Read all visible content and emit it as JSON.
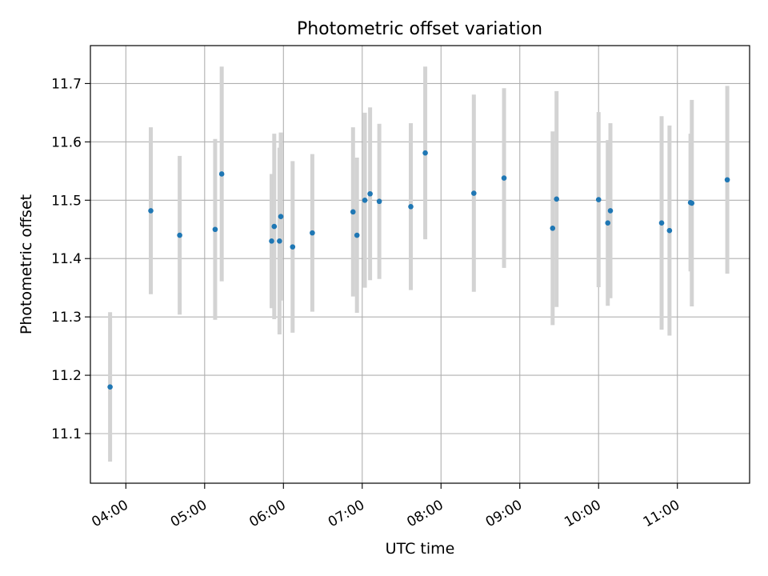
{
  "chart_data": {
    "type": "scatter",
    "title": "Photometric offset variation",
    "xlabel": "UTC time",
    "ylabel": "Photometric offset",
    "x_axis_kind": "time",
    "xlim": [
      "03:33",
      "11:55"
    ],
    "ylim": [
      11.015,
      11.765
    ],
    "x_ticks": [
      "04:00",
      "05:00",
      "06:00",
      "07:00",
      "08:00",
      "09:00",
      "10:00",
      "11:00"
    ],
    "y_ticks": [
      "11.1",
      "11.2",
      "11.3",
      "11.4",
      "11.5",
      "11.6",
      "11.7"
    ],
    "grid": true,
    "series": [
      {
        "marker_color": "#1f77b4",
        "errorbar_color": "#d3d3d3",
        "points": [
          {
            "x": "03:48",
            "y": 11.18,
            "yerr": 0.128
          },
          {
            "x": "04:19",
            "y": 11.482,
            "yerr": 0.143
          },
          {
            "x": "04:41",
            "y": 11.44,
            "yerr": 0.136
          },
          {
            "x": "05:08",
            "y": 11.45,
            "yerr": 0.155
          },
          {
            "x": "05:13",
            "y": 11.545,
            "yerr": 0.184
          },
          {
            "x": "05:51",
            "y": 11.43,
            "yerr": 0.115
          },
          {
            "x": "05:53",
            "y": 11.455,
            "yerr": 0.159
          },
          {
            "x": "05:57",
            "y": 11.43,
            "yerr": 0.16
          },
          {
            "x": "05:58",
            "y": 11.472,
            "yerr": 0.144
          },
          {
            "x": "06:07",
            "y": 11.42,
            "yerr": 0.147
          },
          {
            "x": "06:22",
            "y": 11.444,
            "yerr": 0.135
          },
          {
            "x": "06:53",
            "y": 11.48,
            "yerr": 0.145
          },
          {
            "x": "06:56",
            "y": 11.44,
            "yerr": 0.133
          },
          {
            "x": "07:02",
            "y": 11.5,
            "yerr": 0.15
          },
          {
            "x": "07:06",
            "y": 11.511,
            "yerr": 0.148
          },
          {
            "x": "07:13",
            "y": 11.498,
            "yerr": 0.133
          },
          {
            "x": "07:37",
            "y": 11.489,
            "yerr": 0.143
          },
          {
            "x": "07:48",
            "y": 11.581,
            "yerr": 0.148
          },
          {
            "x": "08:25",
            "y": 11.512,
            "yerr": 0.169
          },
          {
            "x": "08:48",
            "y": 11.538,
            "yerr": 0.154
          },
          {
            "x": "09:25",
            "y": 11.452,
            "yerr": 0.166
          },
          {
            "x": "09:28",
            "y": 11.502,
            "yerr": 0.185
          },
          {
            "x": "10:00",
            "y": 11.501,
            "yerr": 0.15
          },
          {
            "x": "10:07",
            "y": 11.461,
            "yerr": 0.142
          },
          {
            "x": "10:09",
            "y": 11.482,
            "yerr": 0.15
          },
          {
            "x": "10:48",
            "y": 11.461,
            "yerr": 0.183
          },
          {
            "x": "10:54",
            "y": 11.448,
            "yerr": 0.18
          },
          {
            "x": "11:10",
            "y": 11.496,
            "yerr": 0.118
          },
          {
            "x": "11:11",
            "y": 11.495,
            "yerr": 0.177
          },
          {
            "x": "11:38",
            "y": 11.535,
            "yerr": 0.161
          }
        ]
      }
    ]
  }
}
